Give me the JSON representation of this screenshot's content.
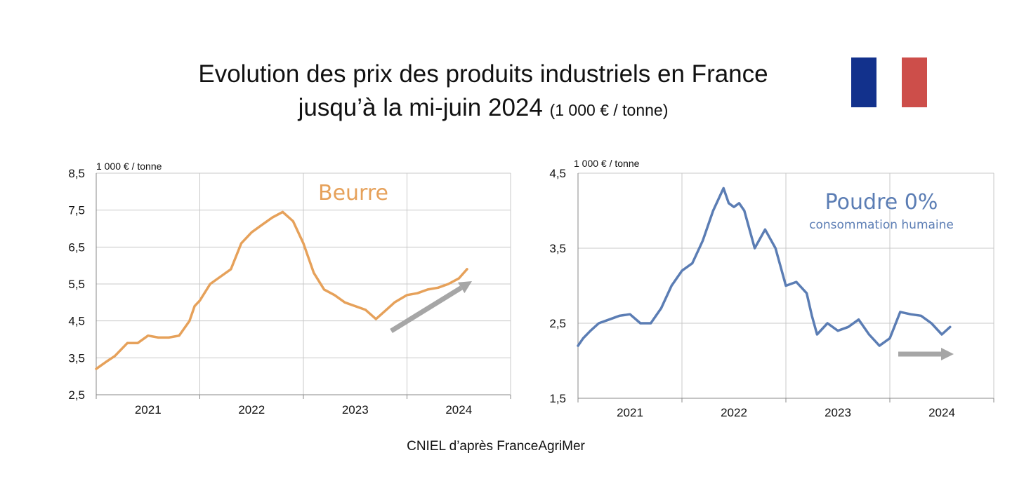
{
  "title": {
    "line1": "Evolution des prix des produits industriels en France",
    "line2": "jusqu’à la mi-juin 2024",
    "unit": "(1 000 € / tonne)"
  },
  "flag": {
    "colors": [
      "#12318c",
      "#ffffff",
      "#cd4e4a"
    ]
  },
  "source": "CNIEL d’après  FranceAgriMer",
  "chart_data": [
    {
      "type": "line",
      "title": "Beurre",
      "subtitle": "",
      "unit_label": "1 000 €  / tonne",
      "color": "#e6a15a",
      "categories": [
        "2021",
        "2022",
        "2023",
        "2024"
      ],
      "yticks": [
        "8,5",
        "7,5",
        "6,5",
        "5,5",
        "4,5",
        "3,5",
        "2,5"
      ],
      "ylim": [
        2.5,
        8.5
      ],
      "xlim": [
        0,
        4
      ],
      "grid": true,
      "trend": "up",
      "series": [
        {
          "x": [
            0,
            0.1,
            0.18,
            0.3,
            0.4,
            0.5,
            0.6,
            0.7,
            0.8,
            0.9,
            0.95,
            1.0,
            1.1,
            1.2,
            1.3,
            1.4,
            1.5,
            1.6,
            1.7,
            1.8,
            1.9,
            2.0,
            2.1,
            2.2,
            2.3,
            2.4,
            2.5,
            2.6,
            2.7,
            2.8,
            2.88,
            3.0,
            3.1,
            3.2,
            3.3,
            3.4,
            3.5,
            3.58
          ],
          "y": [
            3.2,
            3.4,
            3.55,
            3.9,
            3.9,
            4.1,
            4.05,
            4.05,
            4.1,
            4.5,
            4.9,
            5.05,
            5.5,
            5.7,
            5.9,
            6.6,
            6.9,
            7.1,
            7.3,
            7.45,
            7.2,
            6.6,
            5.8,
            5.35,
            5.2,
            5.0,
            4.9,
            4.8,
            4.55,
            4.8,
            5.0,
            5.2,
            5.25,
            5.35,
            5.4,
            5.5,
            5.65,
            5.9
          ]
        }
      ]
    },
    {
      "type": "line",
      "title": "Poudre 0%",
      "subtitle": "consommation humaine",
      "unit_label": "1 000 €  / tonne",
      "color": "#5b7db4",
      "categories": [
        "2021",
        "2022",
        "2023",
        "2024"
      ],
      "yticks": [
        "4,5",
        "3,5",
        "2,5",
        "1,5"
      ],
      "ylim": [
        1.5,
        4.5
      ],
      "xlim": [
        0,
        4
      ],
      "grid": true,
      "trend": "flat",
      "series": [
        {
          "x": [
            0,
            0.05,
            0.12,
            0.2,
            0.3,
            0.4,
            0.5,
            0.6,
            0.7,
            0.8,
            0.9,
            1.0,
            1.1,
            1.2,
            1.3,
            1.4,
            1.45,
            1.5,
            1.55,
            1.6,
            1.7,
            1.8,
            1.9,
            2.0,
            2.1,
            2.2,
            2.25,
            2.3,
            2.4,
            2.5,
            2.6,
            2.7,
            2.8,
            2.9,
            3.0,
            3.1,
            3.2,
            3.3,
            3.4,
            3.5,
            3.58
          ],
          "y": [
            2.2,
            2.3,
            2.4,
            2.5,
            2.55,
            2.6,
            2.62,
            2.5,
            2.5,
            2.7,
            3.0,
            3.2,
            3.3,
            3.6,
            4.0,
            4.3,
            4.1,
            4.05,
            4.1,
            4.0,
            3.5,
            3.75,
            3.5,
            3.0,
            3.05,
            2.9,
            2.6,
            2.35,
            2.5,
            2.4,
            2.45,
            2.55,
            2.35,
            2.2,
            2.3,
            2.65,
            2.62,
            2.6,
            2.5,
            2.35,
            2.45
          ]
        }
      ]
    }
  ]
}
